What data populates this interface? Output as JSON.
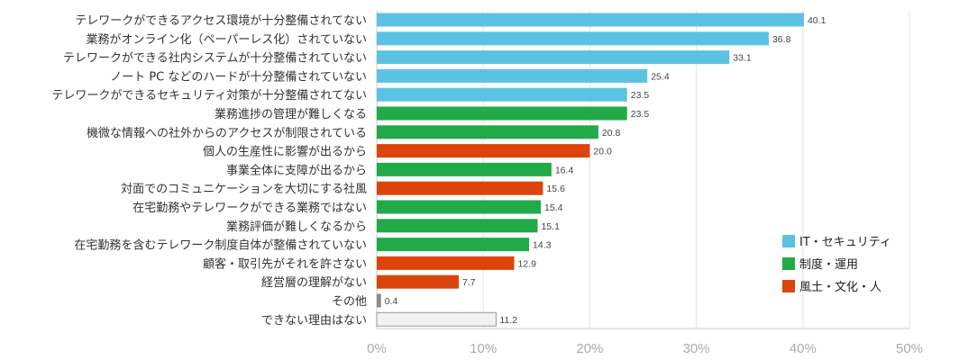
{
  "chart_data": {
    "type": "bar",
    "orientation": "horizontal",
    "title": "",
    "xlabel": "",
    "ylabel": "",
    "xlim": [
      0,
      50
    ],
    "x_ticks": [
      "0%",
      "10%",
      "20%",
      "30%",
      "40%",
      "50%"
    ],
    "grid": true,
    "legend_position": "bottom-right",
    "colors": {
      "it": "#5BC3E1",
      "system": "#21AA47",
      "culture": "#DC440C",
      "other": "#8C8C8C",
      "none": "#F2F2F2"
    },
    "legend": [
      {
        "key": "it",
        "label": "IT・セキュリティ"
      },
      {
        "key": "system",
        "label": "制度・運用"
      },
      {
        "key": "culture",
        "label": "風土・文化・人"
      }
    ],
    "categories": [
      "テレワークができるアクセス環境が十分整備されてない",
      "業務がオンライン化（ペーパーレス化）されていない",
      "テレワークができる社内システムが十分整備されていない",
      "ノート PC などのハードが十分整備されていない",
      "テレワークができるセキュリティ対策が十分整備されてない",
      "業務進捗の管理が難しくなる",
      "機微な情報への社外からのアクセスが制限されている",
      "個人の生産性に影響が出るから",
      "事業全体に支障が出るから",
      "対面でのコミュニケーションを大切にする社風",
      "在宅勤務やテレワークができる業務ではない",
      "業務評価が難しくなるから",
      "在宅勤務を含むテレワーク制度自体が整備されていない",
      "顧客・取引先がそれを許さない",
      "経営層の理解がない",
      "その他",
      "できない理由はない"
    ],
    "values": [
      40.1,
      36.8,
      33.1,
      25.4,
      23.5,
      23.5,
      20.8,
      20.0,
      16.4,
      15.6,
      15.4,
      15.1,
      14.3,
      12.9,
      7.7,
      0.4,
      11.2
    ],
    "value_labels": [
      "40.1",
      "36.8",
      "33.1",
      "25.4",
      "23.5",
      "23.5",
      "20.8",
      "20.0",
      "16.4",
      "15.6",
      "15.4",
      "15.1",
      "14.3",
      "12.9",
      "7.7",
      "0.4",
      "11.2"
    ],
    "groups": [
      "it",
      "it",
      "it",
      "it",
      "it",
      "system",
      "system",
      "culture",
      "system",
      "culture",
      "system",
      "system",
      "system",
      "culture",
      "culture",
      "other",
      "none"
    ]
  }
}
